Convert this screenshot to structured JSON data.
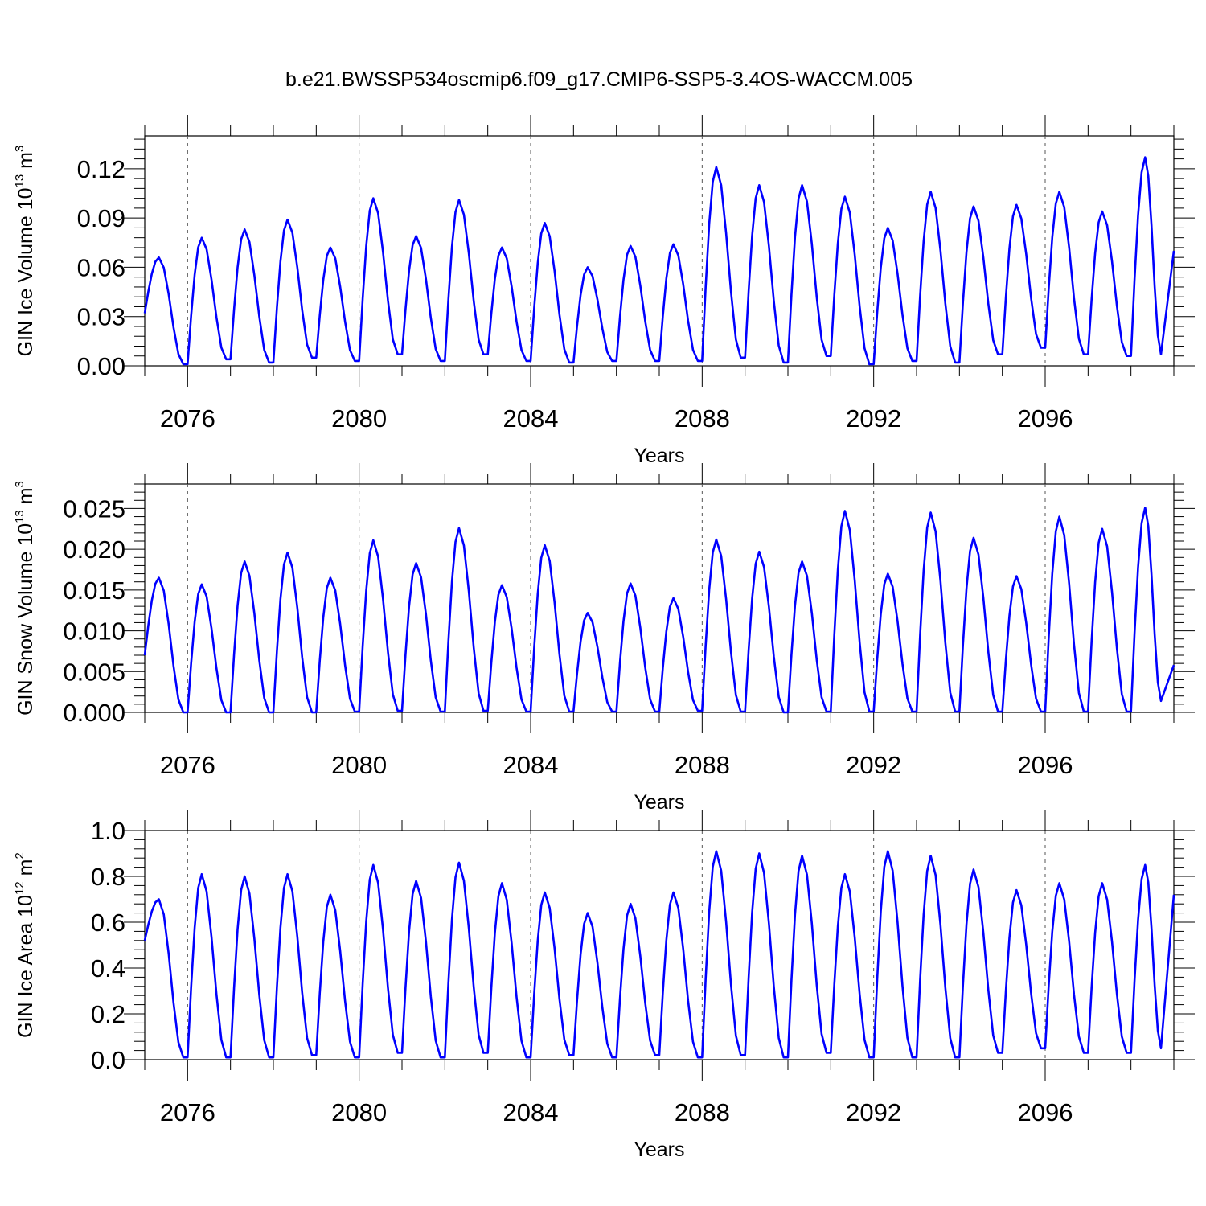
{
  "title": "b.e21.BWSSP534oscmip6.f09_g17.CMIP6-SSP5-3.4OS-WACCM.005",
  "chart_data": [
    {
      "type": "line",
      "name": "ice-volume",
      "ylabel_parts": [
        "GIN Ice Volume 10",
        "13",
        " m",
        "3"
      ],
      "xlabel": "Years",
      "xlim": [
        2075.0,
        2099.0
      ],
      "xticks": [
        2076,
        2080,
        2084,
        2088,
        2092,
        2096
      ],
      "ylim": [
        0.0,
        0.14
      ],
      "yticks": [
        0.0,
        0.03,
        0.06,
        0.09,
        0.12
      ],
      "ytick_labels": [
        "0.00",
        "0.03",
        "0.06",
        "0.09",
        "0.12"
      ],
      "yminor_step": 0.006,
      "color": "#0000ff",
      "peaks": [
        0.066,
        0.078,
        0.083,
        0.089,
        0.072,
        0.102,
        0.079,
        0.101,
        0.072,
        0.087,
        0.06,
        0.073,
        0.074,
        0.121,
        0.11,
        0.11,
        0.103,
        0.084,
        0.106,
        0.097,
        0.098,
        0.106,
        0.094,
        0.127
      ],
      "troughs": [
        0.032,
        0.001,
        0.004,
        0.002,
        0.005,
        0.003,
        0.007,
        0.003,
        0.007,
        0.003,
        0.002,
        0.003,
        0.003,
        0.003,
        0.005,
        0.002,
        0.006,
        0.001,
        0.003,
        0.002,
        0.007,
        0.011,
        0.007,
        0.006,
        0.07
      ]
    },
    {
      "type": "line",
      "name": "snow-volume",
      "ylabel_parts": [
        "GIN Snow Volume 10",
        "13",
        " m",
        "3"
      ],
      "xlabel": "Years",
      "xlim": [
        2075.0,
        2099.0
      ],
      "xticks": [
        2076,
        2080,
        2084,
        2088,
        2092,
        2096
      ],
      "ylim": [
        0.0,
        0.028
      ],
      "yticks": [
        0.0,
        0.005,
        0.01,
        0.015,
        0.02,
        0.025
      ],
      "ytick_labels": [
        "0.000",
        "0.005",
        "0.010",
        "0.015",
        "0.020",
        "0.025"
      ],
      "yminor_step": 0.001,
      "color": "#0000ff",
      "peaks": [
        0.0165,
        0.0157,
        0.0185,
        0.0196,
        0.0165,
        0.0211,
        0.0183,
        0.0226,
        0.0156,
        0.0205,
        0.0122,
        0.0158,
        0.014,
        0.0212,
        0.0197,
        0.0185,
        0.0247,
        0.017,
        0.0245,
        0.0214,
        0.0167,
        0.024,
        0.0225,
        0.0251
      ],
      "troughs": [
        0.007,
        0.0,
        0.0,
        0.0,
        0.0,
        0.0001,
        0.0002,
        0.0001,
        0.0002,
        0.0001,
        0.0001,
        0.0001,
        0.0001,
        0.0002,
        0.0001,
        0.0,
        0.0001,
        0.0001,
        0.0001,
        0.0001,
        0.0001,
        0.0001,
        0.0001,
        0.0001,
        0.0058
      ]
    },
    {
      "type": "line",
      "name": "ice-area",
      "ylabel_parts": [
        "GIN Ice Area 10",
        "12",
        " m",
        "2"
      ],
      "xlabel": "Years",
      "xlim": [
        2075.0,
        2099.0
      ],
      "xticks": [
        2076,
        2080,
        2084,
        2088,
        2092,
        2096
      ],
      "ylim": [
        0.0,
        1.0
      ],
      "yticks": [
        0.0,
        0.2,
        0.4,
        0.6,
        0.8,
        1.0
      ],
      "ytick_labels": [
        "0.0",
        "0.2",
        "0.4",
        "0.6",
        "0.8",
        "1.0"
      ],
      "yminor_step": 0.04,
      "color": "#0000ff",
      "peaks": [
        0.7,
        0.81,
        0.8,
        0.81,
        0.72,
        0.85,
        0.78,
        0.86,
        0.77,
        0.73,
        0.64,
        0.68,
        0.73,
        0.91,
        0.9,
        0.89,
        0.81,
        0.91,
        0.89,
        0.83,
        0.74,
        0.77,
        0.77,
        0.85
      ],
      "troughs": [
        0.52,
        0.01,
        0.01,
        0.01,
        0.02,
        0.01,
        0.03,
        0.01,
        0.03,
        0.01,
        0.02,
        0.01,
        0.02,
        0.01,
        0.02,
        0.01,
        0.03,
        0.01,
        0.01,
        0.01,
        0.03,
        0.05,
        0.03,
        0.03,
        0.72
      ]
    }
  ]
}
